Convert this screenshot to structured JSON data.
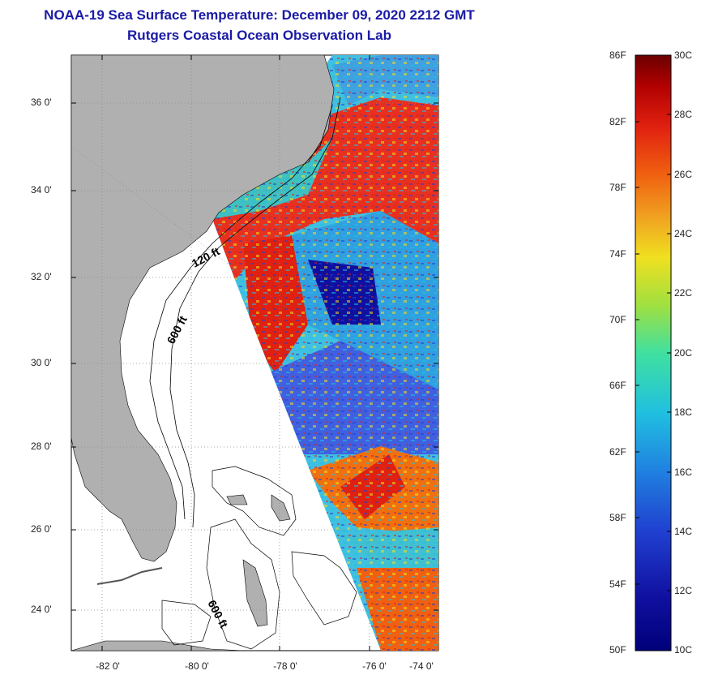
{
  "title": {
    "line1": "NOAA-19 Sea Surface Temperature:  December 09, 2020 2212 GMT",
    "line2": "Rutgers Coastal Ocean Observation Lab"
  },
  "axes": {
    "latitude_labels": [
      "36 0'",
      "34 0'",
      "32 0'",
      "30 0'",
      "28 0'",
      "26 0'",
      "24 0'"
    ],
    "longitude_labels": [
      "-82 0'",
      "-80 0'",
      "-78 0'",
      "-76 0'",
      "-74 0'"
    ]
  },
  "contours": {
    "label_120": "120 ft",
    "label_600a": "600 ft",
    "label_600b": "600 ft"
  },
  "colorbar": {
    "fahrenheit": [
      "86F",
      "82F",
      "78F",
      "74F",
      "70F",
      "66F",
      "62F",
      "58F",
      "54F",
      "50F"
    ],
    "celsius": [
      "30C",
      "28C",
      "26C",
      "24C",
      "22C",
      "20C",
      "18C",
      "16C",
      "14C",
      "12C",
      "10C"
    ],
    "colors": [
      "#6b0000",
      "#b00000",
      "#e02010",
      "#f06010",
      "#f0a020",
      "#f0e020",
      "#a0e040",
      "#40e0a0",
      "#20c0e0",
      "#2080e0",
      "#2040d0",
      "#1010a0",
      "#00007a"
    ]
  },
  "colors": {
    "title": "#1a1aa6",
    "land": "#b0b0b0",
    "grid": "#888888"
  }
}
